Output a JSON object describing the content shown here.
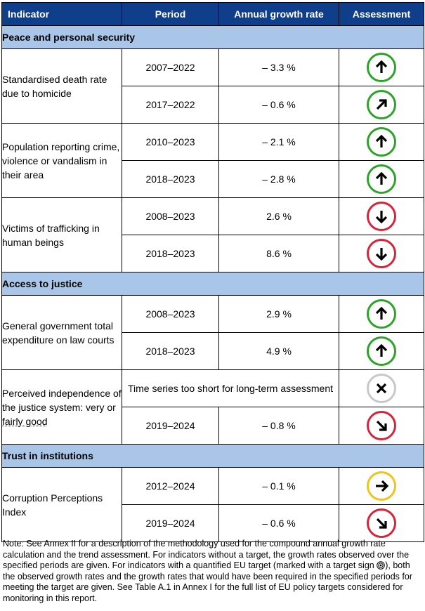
{
  "header": {
    "indicator": "Indicator",
    "period": "Period",
    "rate": "Annual growth rate",
    "assessment": "Assessment"
  },
  "sections": [
    {
      "title": "Peace and personal security",
      "rows": [
        {
          "indicator": "Standardised death rate due to homicide",
          "entries": [
            {
              "period": "2007–2022",
              "rate": "– 3.3 %",
              "icon": "arrow-up-icon",
              "color": "#2ea32a"
            },
            {
              "period": "2017–2022",
              "rate": "– 0.6 %",
              "icon": "arrow-up-right-icon",
              "color": "#2ea32a"
            }
          ]
        },
        {
          "indicator": "Population reporting crime, violence or vandalism in their area",
          "entries": [
            {
              "period": "2010–2023",
              "rate": "– 2.1 %",
              "icon": "arrow-up-icon",
              "color": "#2ea32a"
            },
            {
              "period": "2018–2023",
              "rate": "– 2.8 %",
              "icon": "arrow-up-icon",
              "color": "#2ea32a"
            }
          ]
        },
        {
          "indicator": "Victims of trafficking in human beings",
          "entries": [
            {
              "period": "2008–2023",
              "rate": "2.6 %",
              "icon": "arrow-down-icon",
              "color": "#d6253a"
            },
            {
              "period": "2018–2023",
              "rate": "8.6 %",
              "icon": "arrow-down-icon",
              "color": "#d6253a"
            }
          ]
        }
      ]
    },
    {
      "title": "Access to justice",
      "rows": [
        {
          "indicator": "General government total expenditure on law courts",
          "entries": [
            {
              "period": "2008–2023",
              "rate": "2.9 %",
              "icon": "arrow-up-icon",
              "color": "#2ea32a"
            },
            {
              "period": "2018–2023",
              "rate": "4.9 %",
              "icon": "arrow-up-icon",
              "color": "#2ea32a"
            }
          ]
        },
        {
          "indicator_part1": "Perceived independence of the justice system: very or ",
          "indicator_part2": "fairly good",
          "entries": [
            {
              "span_text": "Time series too short for long-term assessment",
              "icon": "cross-icon",
              "color": "#c8c8c8"
            },
            {
              "period": "2019–2024",
              "rate": "– 0.8 %",
              "icon": "arrow-down-right-icon",
              "color": "#d6253a"
            }
          ]
        }
      ]
    },
    {
      "title": "Trust in institutions",
      "rows": [
        {
          "indicator": "Corruption Perceptions Index",
          "entries": [
            {
              "period": "2012–2024",
              "rate": "– 0.1 %",
              "icon": "arrow-right-icon",
              "color": "#f2c318"
            },
            {
              "period": "2019–2024",
              "rate": "– 0.6 %",
              "icon": "arrow-down-right-icon",
              "color": "#d6253a"
            }
          ]
        }
      ]
    }
  ],
  "note": {
    "part1": "Note: See Annex II for a description of the methodology used for the compound annual growth rate calculation and the trend assessment. For indicators without a target, the growth rates observed over the specified periods are given. For indicators with a quantified EU target (marked with a target sign ",
    "part2": "), both the observed growth rates and the growth rates that would have been required in the specified periods for meeting the target are given. See Table A.1 in Annex I for the full list of EU policy targets considered for monitoring in this report."
  }
}
